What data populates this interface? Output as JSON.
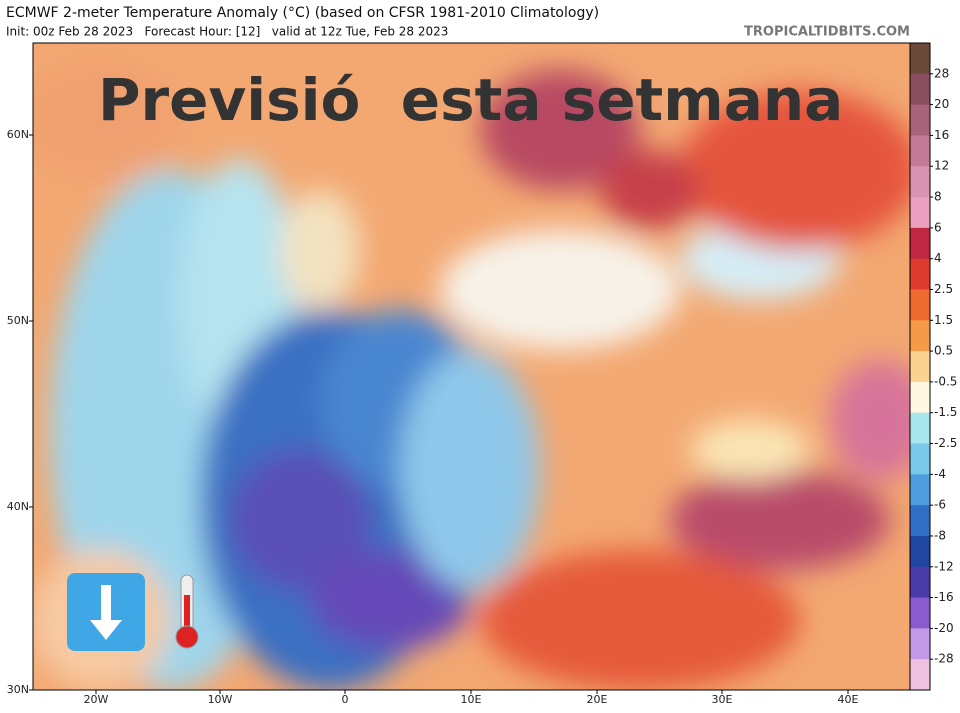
{
  "header": {
    "title": "ECMWF 2-meter Temperature Anomaly (°C) (based on CFSR 1981-2010 Climatology)",
    "subtitle": "Init: 00z Feb 28 2023   Forecast Hour: [12]   valid at 12z Tue, Feb 28 2023",
    "watermark": "TROPICALTIDBITS.COM"
  },
  "overlay_title": "Previsió  esta setmana",
  "map": {
    "lat_labels": [
      "60N",
      "50N",
      "40N",
      "30N"
    ],
    "lon_labels": [
      "20W",
      "10W",
      "0",
      "10E",
      "20E",
      "30E",
      "40E"
    ]
  },
  "colorbar": {
    "labels": [
      "28",
      "20",
      "16",
      "12",
      "8",
      "6",
      "4",
      "2.5",
      "1.5",
      "0.5",
      "-0.5",
      "-1.5",
      "-2.5",
      "-4",
      "-6",
      "-8",
      "-12",
      "-16",
      "-20",
      "-28"
    ]
  }
}
